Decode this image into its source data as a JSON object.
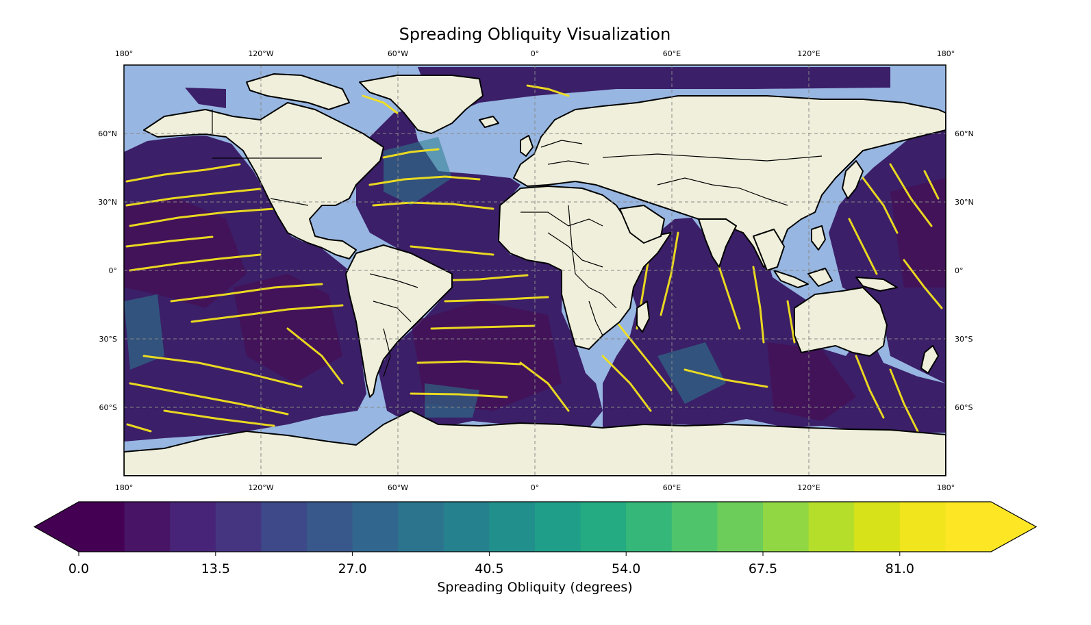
{
  "map": {
    "title": "Spreading Obliquity Visualization",
    "projection": "PlateCarree",
    "extent": {
      "lon": [
        -180,
        180
      ],
      "lat": [
        -90,
        90
      ]
    },
    "lon_ticks": [
      {
        "value": -180,
        "label": "180°"
      },
      {
        "value": -120,
        "label": "120°W"
      },
      {
        "value": -60,
        "label": "60°W"
      },
      {
        "value": 0,
        "label": "0°"
      },
      {
        "value": 60,
        "label": "60°E"
      },
      {
        "value": 120,
        "label": "120°E"
      },
      {
        "value": 180,
        "label": "180°"
      }
    ],
    "lat_ticks": [
      {
        "value": 60,
        "label": "60°N"
      },
      {
        "value": 30,
        "label": "30°N"
      },
      {
        "value": 0,
        "label": "0°"
      },
      {
        "value": -30,
        "label": "30°S"
      },
      {
        "value": -60,
        "label": "60°S"
      }
    ],
    "gridlines": true,
    "colors": {
      "ocean": "#97b6e1",
      "land": "#efefdb",
      "coastline": "#000000",
      "gridline": "#888888",
      "field_base": "#3b1f68",
      "field_dark": "#441257",
      "field_high": "#f3e21d",
      "field_mid": "#2c7d8e"
    },
    "layers": {
      "field": "Spreading obliquity field over ocean",
      "land": "land",
      "coastlines": "coastlines",
      "borders": "country borders"
    }
  },
  "colorbar": {
    "label": "Spreading Obliquity (degrees)",
    "min": 0,
    "max": 90,
    "n_bins": 20,
    "extend": "both",
    "ticks": [
      {
        "value": 0,
        "label": "0.0"
      },
      {
        "value": 13.5,
        "label": "13.5"
      },
      {
        "value": 27,
        "label": "27.0"
      },
      {
        "value": 40.5,
        "label": "40.5"
      },
      {
        "value": 54,
        "label": "54.0"
      },
      {
        "value": 67.5,
        "label": "67.5"
      },
      {
        "value": 81,
        "label": "81.0"
      }
    ],
    "colors": [
      "#440154",
      "#471466",
      "#472477",
      "#453581",
      "#3e4989",
      "#38588c",
      "#31678e",
      "#2c738e",
      "#26818e",
      "#21908d",
      "#1f9e89",
      "#25ab82",
      "#35b779",
      "#4fc46a",
      "#6ccd5a",
      "#90d743",
      "#b5de2b",
      "#d8e219",
      "#f1e51d",
      "#fde725"
    ],
    "under_color": "#440154",
    "over_color": "#fde725"
  }
}
